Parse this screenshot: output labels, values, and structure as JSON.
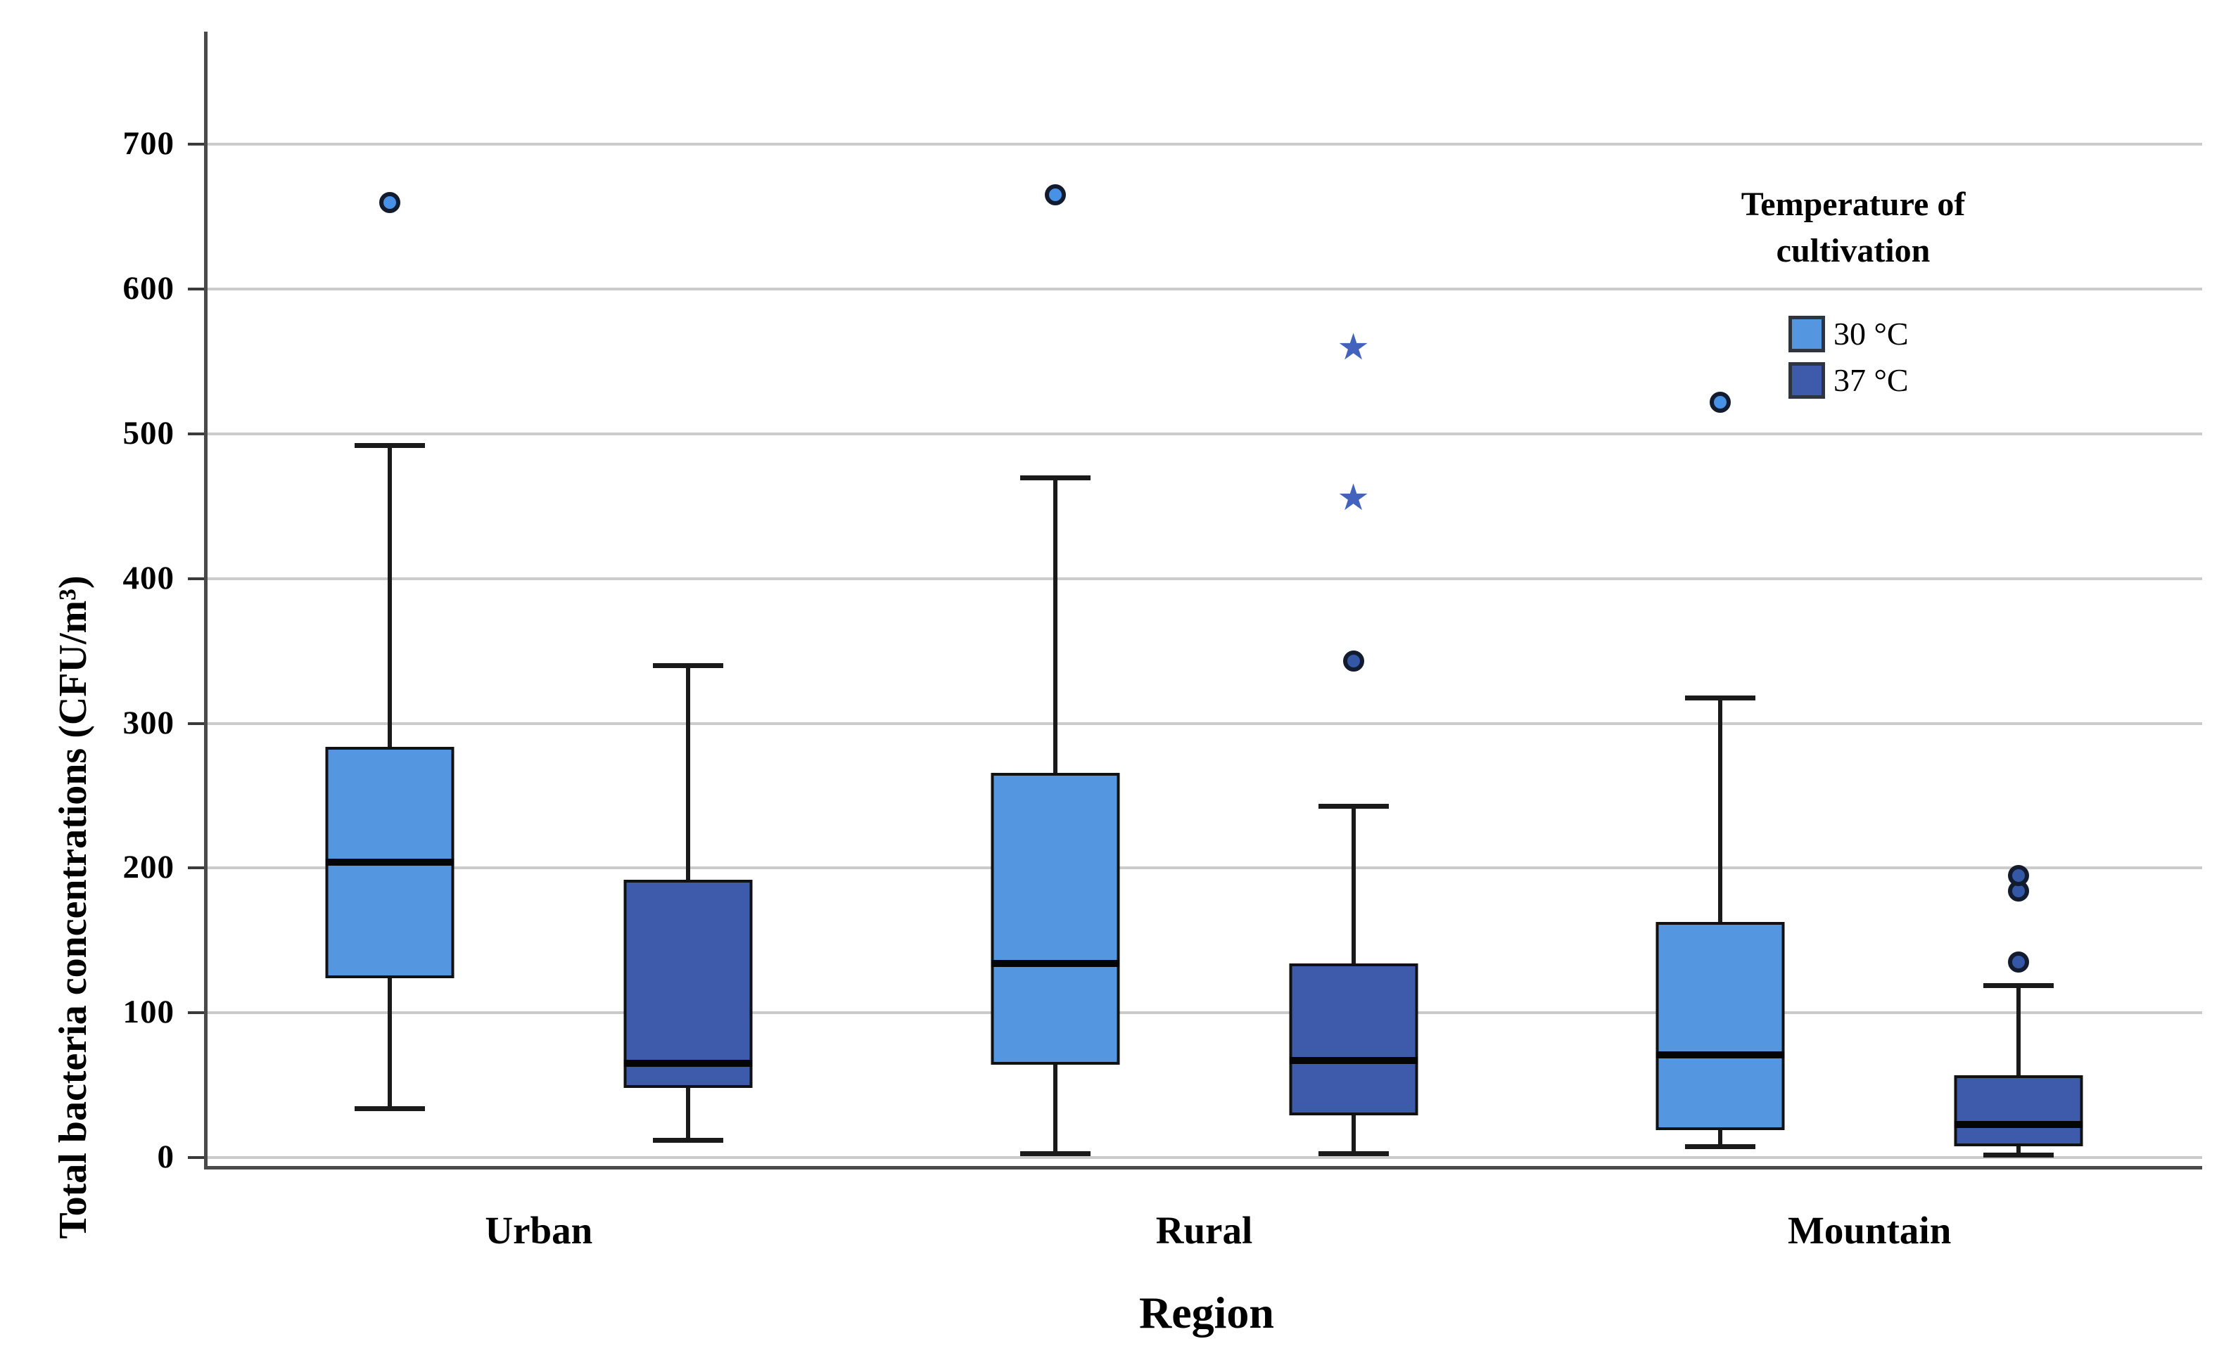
{
  "chart_data": {
    "type": "boxplot",
    "orientation": "vertical",
    "xlabel": "Region",
    "ylabel": "Total bacteria concentrations (CFU/m³)",
    "categories": [
      "Urban",
      "Rural",
      "Mountain"
    ],
    "y_axis": {
      "min": 0,
      "max": 770,
      "tick_step": 100,
      "ticks": [
        0,
        100,
        200,
        300,
        400,
        500,
        600,
        700
      ],
      "grid": true
    },
    "legend": {
      "title_lines": [
        "Temperature of",
        "cultivation"
      ],
      "position": "top-right-inside",
      "items": [
        {
          "label": "30 °C",
          "color": "#5596E1"
        },
        {
          "label": "37 °C",
          "color": "#3E5BAB"
        }
      ]
    },
    "series": [
      {
        "name": "30 °C",
        "color": "#5596E1",
        "outlier_fill": "#4792E6",
        "boxes": [
          {
            "category": "Urban",
            "min": 34,
            "q1": 124,
            "median": 204,
            "q3": 284,
            "max": 492,
            "outliers": [
              660
            ],
            "extremes": []
          },
          {
            "category": "Rural",
            "min": 3,
            "q1": 64,
            "median": 134,
            "q3": 266,
            "max": 470,
            "outliers": [
              665
            ],
            "extremes": []
          },
          {
            "category": "Mountain",
            "min": 8,
            "q1": 19,
            "median": 71,
            "q3": 163,
            "max": 318,
            "outliers": [
              522
            ],
            "extremes": []
          }
        ]
      },
      {
        "name": "37 °C",
        "color": "#3E5BAB",
        "outlier_fill": "#3457A6",
        "boxes": [
          {
            "category": "Urban",
            "min": 12,
            "q1": 48,
            "median": 65,
            "q3": 192,
            "max": 340,
            "outliers": [],
            "extremes": []
          },
          {
            "category": "Rural",
            "min": 3,
            "q1": 29,
            "median": 67,
            "q3": 134,
            "max": 243,
            "outliers": [
              343
            ],
            "extremes": [
              456,
              560
            ]
          },
          {
            "category": "Mountain",
            "min": 2,
            "q1": 8,
            "median": 23,
            "q3": 57,
            "max": 119,
            "outliers": [
              135,
              184,
              195
            ],
            "extremes": []
          }
        ]
      }
    ],
    "style_colors": {
      "grid": "#cbcbcb",
      "axis": "#4a4a4a",
      "box_border": "#111111",
      "median": "#050505",
      "extreme_star": "#4262BE"
    }
  }
}
